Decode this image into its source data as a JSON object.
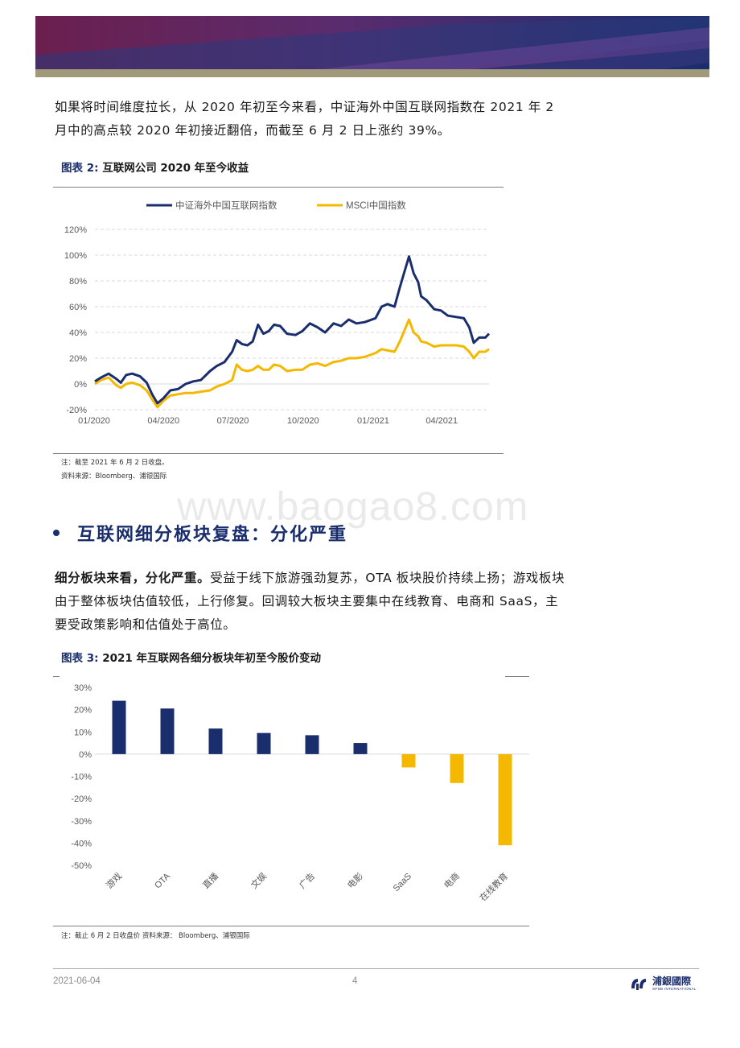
{
  "paragraph1": "如果将时间维度拉长，从 2020 年初至今来看，中证海外中国互联网指数在 2021 年 2 月中的高点较 2020 年初接近翻倍，而截至 6 月 2 日上涨约 39%。",
  "figure2": {
    "label": "图表  2:",
    "title": "互联网公司 2020 年至今收益",
    "note": "注：截至 2021 年 6 月 2 日收盘。",
    "source": "资料来源：Bloomberg、浦银国际"
  },
  "section": {
    "title": "互联网细分板块复盘：分化严重"
  },
  "paragraph2": {
    "bold": "细分板块来看，分化严重。",
    "text": "受益于线下旅游强劲复苏，OTA 板块股价持续上扬；游戏板块由于整体板块估值较低，上行修复。回调较大板块主要集中在线教育、电商和 SaaS，主要受政策影响和估值处于高位。"
  },
  "figure3": {
    "label": "图表  3:",
    "title": "2021 年互联网各细分板块年初至今股价变动",
    "note": "注：截止 6 月 2 日收盘价    资料来源： Bloomberg、浦银国际"
  },
  "watermark": "www.baogao8.com",
  "footer": {
    "date": "2021-06-04",
    "page": "4",
    "logo_name": "浦銀國際",
    "logo_sub": "SPDB INTERNATIONAL"
  },
  "colors": {
    "navy": "#1a2e6e",
    "gold": "#f5b800"
  },
  "chart_data": [
    {
      "type": "line",
      "title": "",
      "x_ticks": [
        "01/2020",
        "04/2020",
        "07/2020",
        "10/2020",
        "01/2021",
        "04/2021"
      ],
      "y_ticks": [
        "120%",
        "100%",
        "80%",
        "60%",
        "40%",
        "20%",
        "0%",
        "-20%"
      ],
      "ylim": [
        -20,
        120
      ],
      "x_range": [
        "2020-01-02",
        "2021-06-02"
      ],
      "grid": true,
      "legend_position": "top",
      "series": [
        {
          "name": "中证海外中国互联网指数",
          "color": "#1a2e6e",
          "points": [
            [
              "2020-01-02",
              2
            ],
            [
              "2020-01-10",
              5
            ],
            [
              "2020-01-20",
              8
            ],
            [
              "2020-01-30",
              4
            ],
            [
              "2020-02-05",
              1
            ],
            [
              "2020-02-12",
              7
            ],
            [
              "2020-02-20",
              8
            ],
            [
              "2020-03-01",
              6
            ],
            [
              "2020-03-10",
              1
            ],
            [
              "2020-03-17",
              -8
            ],
            [
              "2020-03-24",
              -15
            ],
            [
              "2020-04-01",
              -11
            ],
            [
              "2020-04-10",
              -5
            ],
            [
              "2020-04-20",
              -4
            ],
            [
              "2020-04-30",
              0
            ],
            [
              "2020-05-10",
              2
            ],
            [
              "2020-05-20",
              3
            ],
            [
              "2020-06-01",
              10
            ],
            [
              "2020-06-10",
              14
            ],
            [
              "2020-06-20",
              17
            ],
            [
              "2020-06-30",
              25
            ],
            [
              "2020-07-06",
              34
            ],
            [
              "2020-07-13",
              31
            ],
            [
              "2020-07-20",
              30
            ],
            [
              "2020-07-27",
              33
            ],
            [
              "2020-08-03",
              46
            ],
            [
              "2020-08-10",
              39
            ],
            [
              "2020-08-17",
              41
            ],
            [
              "2020-08-24",
              46
            ],
            [
              "2020-09-01",
              45
            ],
            [
              "2020-09-10",
              39
            ],
            [
              "2020-09-21",
              38
            ],
            [
              "2020-09-30",
              41
            ],
            [
              "2020-10-10",
              47
            ],
            [
              "2020-10-20",
              44
            ],
            [
              "2020-10-30",
              40
            ],
            [
              "2020-11-10",
              47
            ],
            [
              "2020-11-20",
              45
            ],
            [
              "2020-11-30",
              50
            ],
            [
              "2020-12-10",
              47
            ],
            [
              "2020-12-21",
              48
            ],
            [
              "2021-01-04",
              51
            ],
            [
              "2021-01-12",
              60
            ],
            [
              "2021-01-20",
              62
            ],
            [
              "2021-01-29",
              60
            ],
            [
              "2021-02-05",
              75
            ],
            [
              "2021-02-10",
              85
            ],
            [
              "2021-02-17",
              99
            ],
            [
              "2021-02-23",
              86
            ],
            [
              "2021-03-01",
              79
            ],
            [
              "2021-03-05",
              68
            ],
            [
              "2021-03-12",
              65
            ],
            [
              "2021-03-22",
              58
            ],
            [
              "2021-03-31",
              57
            ],
            [
              "2021-04-09",
              53
            ],
            [
              "2021-04-20",
              52
            ],
            [
              "2021-04-30",
              51
            ],
            [
              "2021-05-07",
              44
            ],
            [
              "2021-05-13",
              32
            ],
            [
              "2021-05-20",
              36
            ],
            [
              "2021-05-28",
              36
            ],
            [
              "2021-06-02",
              39
            ]
          ]
        },
        {
          "name": "MSCI中国指数",
          "color": "#f5b800",
          "points": [
            [
              "2020-01-02",
              0
            ],
            [
              "2020-01-10",
              3
            ],
            [
              "2020-01-20",
              5
            ],
            [
              "2020-01-30",
              -1
            ],
            [
              "2020-02-05",
              -3
            ],
            [
              "2020-02-12",
              0
            ],
            [
              "2020-02-20",
              1
            ],
            [
              "2020-03-01",
              -1
            ],
            [
              "2020-03-10",
              -5
            ],
            [
              "2020-03-17",
              -12
            ],
            [
              "2020-03-24",
              -18
            ],
            [
              "2020-04-01",
              -13
            ],
            [
              "2020-04-10",
              -9
            ],
            [
              "2020-04-20",
              -8
            ],
            [
              "2020-04-30",
              -7
            ],
            [
              "2020-05-10",
              -7
            ],
            [
              "2020-05-20",
              -6
            ],
            [
              "2020-06-01",
              -5
            ],
            [
              "2020-06-10",
              -2
            ],
            [
              "2020-06-20",
              0
            ],
            [
              "2020-06-30",
              3
            ],
            [
              "2020-07-06",
              15
            ],
            [
              "2020-07-13",
              11
            ],
            [
              "2020-07-20",
              10
            ],
            [
              "2020-07-27",
              11
            ],
            [
              "2020-08-03",
              14
            ],
            [
              "2020-08-10",
              11
            ],
            [
              "2020-08-17",
              11
            ],
            [
              "2020-08-24",
              15
            ],
            [
              "2020-09-01",
              14
            ],
            [
              "2020-09-10",
              10
            ],
            [
              "2020-09-21",
              11
            ],
            [
              "2020-09-30",
              11
            ],
            [
              "2020-10-10",
              15
            ],
            [
              "2020-10-20",
              16
            ],
            [
              "2020-10-30",
              14
            ],
            [
              "2020-11-10",
              17
            ],
            [
              "2020-11-20",
              18
            ],
            [
              "2020-11-30",
              20
            ],
            [
              "2020-12-10",
              20
            ],
            [
              "2020-12-21",
              21
            ],
            [
              "2021-01-04",
              24
            ],
            [
              "2021-01-12",
              27
            ],
            [
              "2021-01-20",
              26
            ],
            [
              "2021-01-29",
              25
            ],
            [
              "2021-02-05",
              33
            ],
            [
              "2021-02-10",
              40
            ],
            [
              "2021-02-17",
              50
            ],
            [
              "2021-02-23",
              40
            ],
            [
              "2021-03-01",
              37
            ],
            [
              "2021-03-05",
              33
            ],
            [
              "2021-03-12",
              32
            ],
            [
              "2021-03-22",
              29
            ],
            [
              "2021-03-31",
              30
            ],
            [
              "2021-04-09",
              30
            ],
            [
              "2021-04-20",
              30
            ],
            [
              "2021-04-30",
              29
            ],
            [
              "2021-05-07",
              25
            ],
            [
              "2021-05-13",
              20
            ],
            [
              "2021-05-20",
              25
            ],
            [
              "2021-05-28",
              25
            ],
            [
              "2021-06-02",
              27
            ]
          ]
        }
      ]
    },
    {
      "type": "bar",
      "title": "",
      "categories": [
        "游戏",
        "OTA",
        "直播",
        "文娱",
        "广告",
        "电影",
        "SaaS",
        "电商",
        "在线教育"
      ],
      "values": [
        24,
        20.5,
        11.5,
        9.5,
        8.5,
        5,
        -6,
        -13,
        -41
      ],
      "y_ticks": [
        "30%",
        "20%",
        "10%",
        "0%",
        "-10%",
        "-20%",
        "-30%",
        "-40%",
        "-50%"
      ],
      "ylim": [
        -50,
        30
      ],
      "positive_color": "#1a2e6e",
      "negative_color": "#f5b800",
      "grid": false
    }
  ]
}
